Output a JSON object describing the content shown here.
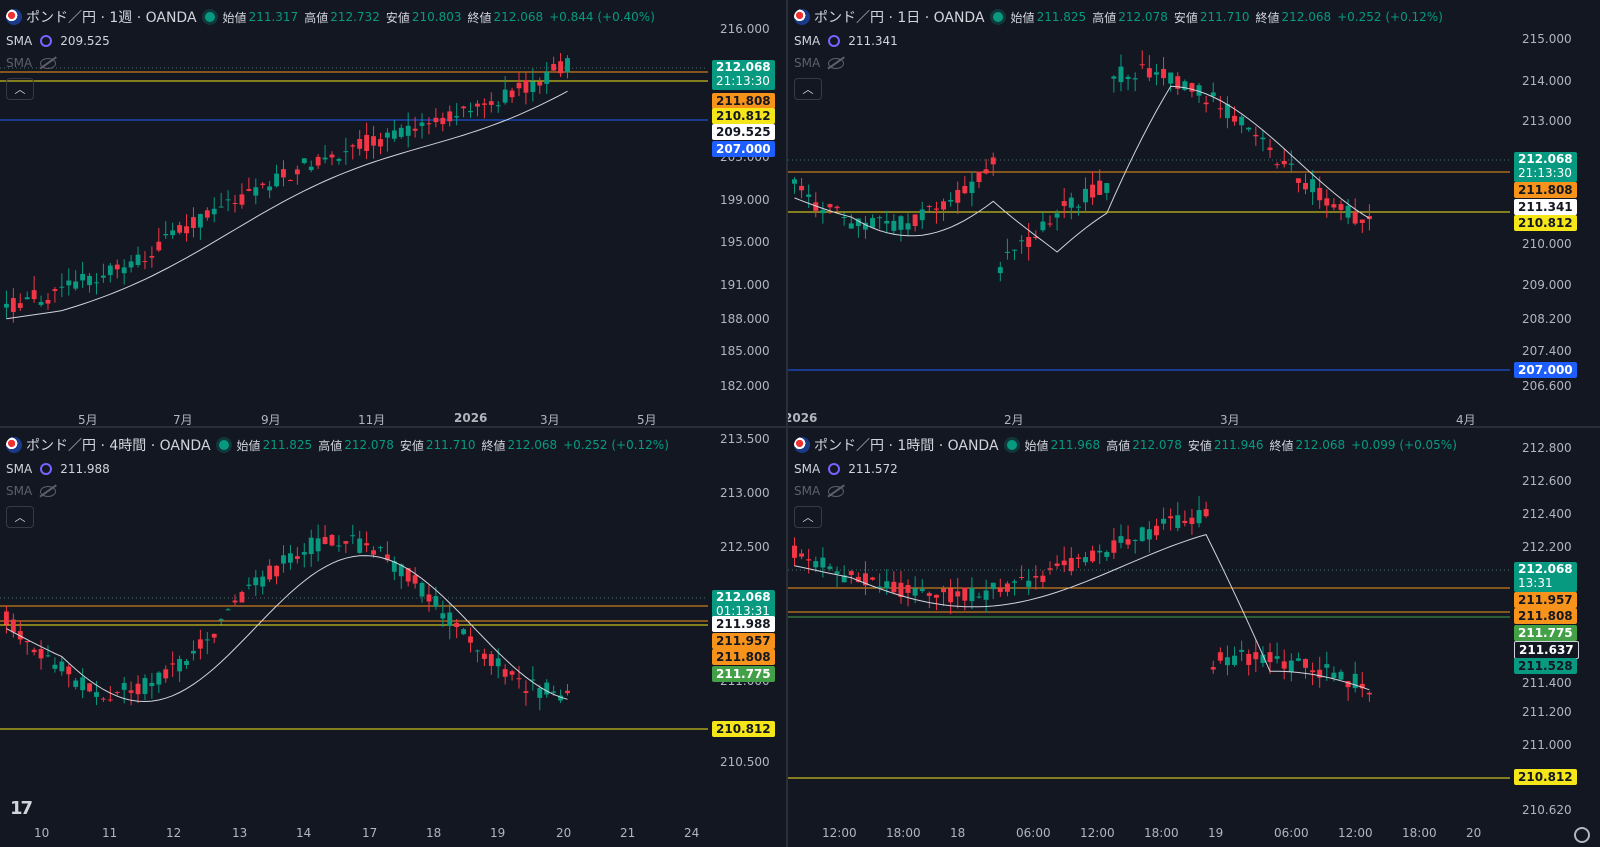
{
  "panes": [
    {
      "id": "weekly",
      "title": "ポンド／円 · 1週 · OANDA",
      "ohlc": {
        "o_label": "始値",
        "o": "211.317",
        "h_label": "高値",
        "h": "212.732",
        "l_label": "安値",
        "l": "210.803",
        "c_label": "終値",
        "c": "212.068",
        "change": "+0.844 (+0.40%)"
      },
      "sma1": "209.525",
      "sma_label": "SMA",
      "yticks": [
        "216.000",
        "203.000",
        "199.000",
        "195.000",
        "191.000",
        "188.000",
        "185.000",
        "182.000"
      ],
      "xticks": [
        "5月",
        "7月",
        "9月",
        "11月",
        "2026",
        "3月",
        "5月"
      ],
      "badges": [
        {
          "text": "212.068",
          "sub": "21:13:30",
          "bg": "#089981",
          "fg": "#ffffff"
        },
        {
          "text": "211.808",
          "bg": "#f7931a",
          "fg": "#131722"
        },
        {
          "text": "210.812",
          "bg": "#f5e61a",
          "fg": "#131722"
        },
        {
          "text": "209.525",
          "bg": "#ffffff",
          "fg": "#131722"
        },
        {
          "text": "207.000",
          "bg": "#1e5eff",
          "fg": "#ffffff"
        }
      ]
    },
    {
      "id": "daily",
      "title": "ポンド／円 · 1日 · OANDA",
      "ohlc": {
        "o_label": "始値",
        "o": "211.825",
        "h_label": "高値",
        "h": "212.078",
        "l_label": "安値",
        "l": "211.710",
        "c_label": "終値",
        "c": "212.068",
        "change": "+0.252 (+0.12%)"
      },
      "sma1": "211.341",
      "sma_label": "SMA",
      "yticks": [
        "215.000",
        "214.000",
        "213.000",
        "210.000",
        "209.000",
        "208.200",
        "207.400",
        "206.600"
      ],
      "xticks": [
        "2026",
        "2月",
        "3月",
        "4月"
      ],
      "badges": [
        {
          "text": "212.068",
          "sub": "21:13:30",
          "bg": "#089981",
          "fg": "#ffffff"
        },
        {
          "text": "211.808",
          "bg": "#f7931a",
          "fg": "#131722"
        },
        {
          "text": "211.341",
          "bg": "#ffffff",
          "fg": "#131722"
        },
        {
          "text": "210.812",
          "bg": "#f5e61a",
          "fg": "#131722"
        },
        {
          "text": "207.000",
          "bg": "#1e5eff",
          "fg": "#ffffff"
        }
      ]
    },
    {
      "id": "h4",
      "title": "ポンド／円 · 4時間 · OANDA",
      "ohlc": {
        "o_label": "始値",
        "o": "211.825",
        "h_label": "高値",
        "h": "212.078",
        "l_label": "安値",
        "l": "211.710",
        "c_label": "終値",
        "c": "212.068",
        "change": "+0.252 (+0.12%)"
      },
      "sma1": "211.988",
      "sma_label": "SMA",
      "yticks": [
        "213.500",
        "213.000",
        "212.500",
        "211.000",
        "210.500"
      ],
      "xticks": [
        "10",
        "11",
        "12",
        "13",
        "14",
        "17",
        "18",
        "19",
        "20",
        "21",
        "24"
      ],
      "badges": [
        {
          "text": "212.068",
          "sub": "01:13:31",
          "bg": "#089981",
          "fg": "#ffffff"
        },
        {
          "text": "211.988",
          "bg": "#ffffff",
          "fg": "#131722"
        },
        {
          "text": "211.957",
          "bg": "#f7931a",
          "fg": "#131722"
        },
        {
          "text": "211.808",
          "bg": "#f7931a",
          "fg": "#131722"
        },
        {
          "text": "211.775",
          "bg": "#43a047",
          "fg": "#ffffff"
        },
        {
          "text": "210.812",
          "bg": "#f5e61a",
          "fg": "#131722"
        }
      ]
    },
    {
      "id": "h1",
      "title": "ポンド／円 · 1時間 · OANDA",
      "ohlc": {
        "o_label": "始値",
        "o": "211.968",
        "h_label": "高値",
        "h": "212.078",
        "l_label": "安値",
        "l": "211.946",
        "c_label": "終値",
        "c": "212.068",
        "change": "+0.099 (+0.05%)"
      },
      "sma1": "211.572",
      "sma_label": "SMA",
      "yticks": [
        "212.800",
        "212.600",
        "212.400",
        "212.200",
        "211.400",
        "211.200",
        "211.000",
        "210.620"
      ],
      "xticks": [
        "12:00",
        "18:00",
        "18",
        "06:00",
        "12:00",
        "18:00",
        "19",
        "06:00",
        "12:00",
        "18:00",
        "20"
      ],
      "badges": [
        {
          "text": "212.068",
          "sub": "13:31",
          "bg": "#089981",
          "fg": "#ffffff"
        },
        {
          "text": "211.957",
          "bg": "#f7931a",
          "fg": "#131722"
        },
        {
          "text": "211.808",
          "bg": "#f7931a",
          "fg": "#131722"
        },
        {
          "text": "211.775",
          "bg": "#43a047",
          "fg": "#ffffff"
        },
        {
          "text": "211.637",
          "bg": "#131722",
          "fg": "#ffffff"
        },
        {
          "text": "211.528",
          "bg": "#089981",
          "fg": "#131722"
        },
        {
          "text": "210.812",
          "bg": "#f5e61a",
          "fg": "#131722"
        }
      ]
    }
  ],
  "colors": {
    "up": "#089981",
    "down": "#f23645",
    "sma": "#d1d4dc",
    "orange": "#f7931a",
    "yellow": "#f5e61a",
    "blue": "#1e5eff",
    "green": "#43a047"
  }
}
